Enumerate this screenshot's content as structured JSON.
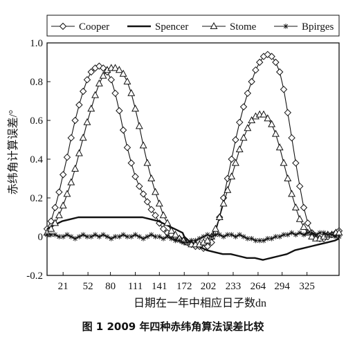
{
  "chart_data": {
    "type": "line",
    "title": "",
    "caption": "图 1    2009 年四种赤纬角算法误差比较",
    "xlabel": "日期在一年中相应日子数dn",
    "ylabel": "赤纬角计算误差/°",
    "xticks": [
      21,
      52,
      80,
      111,
      141,
      172,
      202,
      233,
      264,
      294,
      325
    ],
    "yticks": [
      -0.2,
      0,
      0.2,
      0.4,
      0.6,
      0.8,
      1.0
    ],
    "ytick_labels": [
      "-0.2",
      "0",
      "0.2",
      "0.4",
      "0.6",
      "0.8",
      "1.0"
    ],
    "xlim": [
      1,
      365
    ],
    "ylim": [
      -0.2,
      1.0
    ],
    "grid": false,
    "legend_position": "top",
    "series": [
      {
        "name": "Cooper",
        "marker": "diamond",
        "x": [
          1,
          6,
          11,
          16,
          21,
          26,
          31,
          36,
          41,
          46,
          51,
          56,
          61,
          66,
          71,
          76,
          81,
          86,
          91,
          96,
          101,
          106,
          111,
          116,
          121,
          126,
          131,
          136,
          141,
          146,
          151,
          156,
          161,
          166,
          171,
          176,
          181,
          186,
          191,
          196,
          201,
          206,
          211,
          216,
          221,
          226,
          231,
          236,
          241,
          246,
          251,
          256,
          261,
          266,
          271,
          276,
          281,
          286,
          291,
          296,
          301,
          306,
          311,
          316,
          321,
          326,
          331,
          336,
          341,
          346,
          351,
          356,
          361,
          365
        ],
        "y": [
          0.04,
          0.08,
          0.15,
          0.23,
          0.32,
          0.41,
          0.51,
          0.6,
          0.68,
          0.75,
          0.81,
          0.85,
          0.87,
          0.88,
          0.87,
          0.85,
          0.81,
          0.74,
          0.65,
          0.55,
          0.46,
          0.38,
          0.31,
          0.26,
          0.22,
          0.18,
          0.14,
          0.11,
          0.07,
          0.04,
          0.02,
          0.01,
          0.0,
          -0.01,
          -0.02,
          -0.03,
          -0.04,
          -0.05,
          -0.05,
          -0.06,
          -0.05,
          -0.03,
          0.02,
          0.1,
          0.2,
          0.3,
          0.4,
          0.5,
          0.59,
          0.67,
          0.74,
          0.8,
          0.86,
          0.9,
          0.93,
          0.94,
          0.93,
          0.9,
          0.85,
          0.76,
          0.64,
          0.51,
          0.38,
          0.26,
          0.15,
          0.07,
          0.02,
          0.0,
          -0.01,
          -0.01,
          0.0,
          0.01,
          0.02,
          0.03
        ]
      },
      {
        "name": "Spencer",
        "marker": "none",
        "x": [
          1,
          10,
          20,
          30,
          40,
          50,
          60,
          70,
          80,
          90,
          100,
          110,
          120,
          130,
          140,
          150,
          160,
          170,
          172,
          180,
          190,
          200,
          210,
          220,
          230,
          240,
          250,
          260,
          270,
          280,
          290,
          300,
          310,
          320,
          330,
          340,
          350,
          360,
          365
        ],
        "y": [
          0.04,
          0.06,
          0.08,
          0.09,
          0.1,
          0.1,
          0.1,
          0.1,
          0.1,
          0.1,
          0.1,
          0.1,
          0.1,
          0.09,
          0.08,
          0.06,
          0.04,
          0.02,
          0.0,
          -0.03,
          -0.05,
          -0.07,
          -0.08,
          -0.09,
          -0.09,
          -0.1,
          -0.11,
          -0.11,
          -0.12,
          -0.11,
          -0.1,
          -0.09,
          -0.07,
          -0.06,
          -0.05,
          -0.04,
          -0.03,
          -0.02,
          -0.01
        ]
      },
      {
        "name": "Stome",
        "marker": "triangle",
        "x": [
          1,
          6,
          11,
          16,
          21,
          26,
          31,
          36,
          41,
          46,
          51,
          56,
          61,
          66,
          71,
          76,
          81,
          86,
          91,
          96,
          101,
          106,
          111,
          116,
          121,
          126,
          131,
          136,
          141,
          146,
          151,
          156,
          161,
          166,
          171,
          176,
          181,
          186,
          191,
          196,
          201,
          206,
          211,
          216,
          221,
          226,
          231,
          236,
          241,
          246,
          251,
          256,
          261,
          266,
          271,
          276,
          281,
          286,
          291,
          296,
          301,
          306,
          311,
          316,
          321,
          326,
          331,
          336,
          341,
          346,
          351,
          356,
          361,
          365
        ],
        "y": [
          0.02,
          0.04,
          0.07,
          0.11,
          0.16,
          0.22,
          0.28,
          0.35,
          0.43,
          0.51,
          0.59,
          0.66,
          0.73,
          0.79,
          0.83,
          0.86,
          0.87,
          0.87,
          0.86,
          0.84,
          0.8,
          0.74,
          0.66,
          0.57,
          0.47,
          0.38,
          0.3,
          0.23,
          0.17,
          0.11,
          0.07,
          0.03,
          0.01,
          -0.01,
          -0.02,
          -0.03,
          -0.04,
          -0.04,
          -0.04,
          -0.03,
          -0.02,
          0.0,
          0.04,
          0.1,
          0.17,
          0.24,
          0.31,
          0.38,
          0.45,
          0.51,
          0.56,
          0.6,
          0.62,
          0.63,
          0.63,
          0.61,
          0.58,
          0.53,
          0.46,
          0.38,
          0.3,
          0.22,
          0.15,
          0.09,
          0.05,
          0.02,
          0.0,
          -0.01,
          -0.01,
          0.0,
          0.01,
          0.01,
          0.02,
          0.02
        ]
      },
      {
        "name": "Bpirges",
        "marker": "asterisk",
        "x": [
          1,
          6,
          11,
          16,
          21,
          26,
          31,
          36,
          41,
          46,
          51,
          56,
          61,
          66,
          71,
          76,
          81,
          86,
          91,
          96,
          101,
          106,
          111,
          116,
          121,
          126,
          131,
          136,
          141,
          146,
          151,
          156,
          161,
          166,
          171,
          176,
          181,
          186,
          191,
          196,
          201,
          206,
          211,
          216,
          221,
          226,
          231,
          236,
          241,
          246,
          251,
          256,
          261,
          266,
          271,
          276,
          281,
          286,
          291,
          296,
          301,
          306,
          311,
          316,
          321,
          326,
          331,
          336,
          341,
          346,
          351,
          356,
          361,
          365
        ],
        "y": [
          0.01,
          0.01,
          0.01,
          0.0,
          0.0,
          0.01,
          0.0,
          -0.01,
          0.0,
          0.01,
          0.0,
          0.0,
          0.01,
          0.0,
          0.01,
          0.0,
          -0.01,
          0.0,
          0.0,
          0.01,
          0.0,
          0.0,
          0.01,
          0.0,
          -0.01,
          0.0,
          0.01,
          0.0,
          0.0,
          -0.01,
          0.0,
          -0.01,
          -0.02,
          -0.02,
          -0.03,
          -0.03,
          -0.02,
          -0.02,
          -0.01,
          0.0,
          0.01,
          0.0,
          0.01,
          0.01,
          0.0,
          0.01,
          0.01,
          0.0,
          0.01,
          0.0,
          -0.01,
          -0.01,
          -0.02,
          -0.02,
          -0.02,
          -0.01,
          -0.01,
          0.0,
          0.0,
          0.01,
          0.01,
          0.02,
          0.01,
          0.02,
          0.01,
          0.02,
          0.02,
          0.01,
          0.02,
          0.02,
          0.01,
          0.01,
          0.0,
          0.0
        ]
      }
    ]
  }
}
